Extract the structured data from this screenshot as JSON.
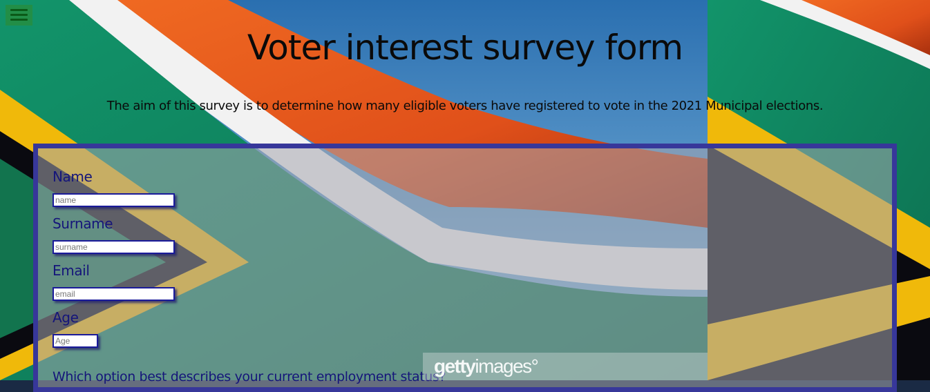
{
  "page": {
    "title": "Voter interest survey form",
    "description": "The aim of this survey is to determine how many eligible voters have registered to vote in the 2021 Municipal elections."
  },
  "menu": {
    "icon": "hamburger-menu-icon"
  },
  "form": {
    "fields": [
      {
        "label": "Name",
        "placeholder": "name",
        "value": ""
      },
      {
        "label": "Surname",
        "placeholder": "surname",
        "value": ""
      },
      {
        "label": "Email",
        "placeholder": "email",
        "value": ""
      },
      {
        "label": "Age",
        "placeholder": "Age",
        "value": ""
      }
    ],
    "question": "Which option best describes your current employment status?"
  },
  "watermark": {
    "brand_bold": "getty",
    "brand_light": "images"
  },
  "colors": {
    "panel_border": "#37379a",
    "label_text": "#15157a",
    "flag_green": "#1a8a5a",
    "flag_orange": "#e4561c",
    "flag_gold": "#f0b90a",
    "flag_black": "#0a0a10",
    "sky_blue": "#3a82bd"
  }
}
